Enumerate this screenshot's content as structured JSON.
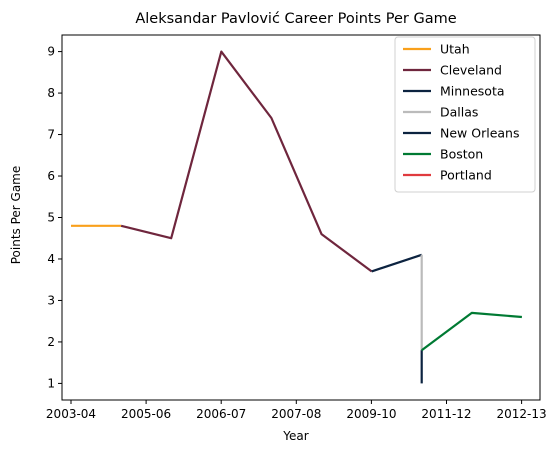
{
  "chart_data": {
    "type": "line",
    "title": "Aleksandar Pavlović Career Points Per Game",
    "xlabel": "Year",
    "ylabel": "Points Per Game",
    "x_tick_labels": [
      "2003-04",
      "2005-06",
      "2006-07",
      "2007-08",
      "2009-10",
      "2011-12",
      "2012-13"
    ],
    "ylim": [
      0.6,
      9.4
    ],
    "y_ticks": [
      1,
      2,
      3,
      4,
      5,
      6,
      7,
      8,
      9
    ],
    "grid": false,
    "legend_position": "top-right",
    "series": [
      {
        "name": "Utah",
        "color": "#F9A01B",
        "x": [
          0,
          1
        ],
        "y": [
          4.8,
          4.8
        ]
      },
      {
        "name": "Cleveland",
        "color": "#6F263D",
        "x": [
          1,
          2,
          3,
          4,
          5,
          6
        ],
        "y": [
          4.8,
          4.5,
          9.0,
          7.4,
          4.6,
          3.7
        ]
      },
      {
        "name": "Minnesota",
        "color": "#0C2340",
        "x": [
          6,
          7
        ],
        "y": [
          3.7,
          4.1
        ]
      },
      {
        "name": "Dallas",
        "color": "#BBBBBB",
        "x": [
          7,
          7
        ],
        "y": [
          4.1,
          1.8
        ]
      },
      {
        "name": "New Orleans",
        "color": "#0C2340",
        "x": [
          7,
          7
        ],
        "y": [
          1.0,
          1.8
        ]
      },
      {
        "name": "Boston",
        "color": "#007A33",
        "x": [
          7,
          8,
          9
        ],
        "y": [
          1.8,
          2.7,
          2.6
        ]
      },
      {
        "name": "Portland",
        "color": "#E03A3E",
        "x": [],
        "y": []
      }
    ]
  }
}
